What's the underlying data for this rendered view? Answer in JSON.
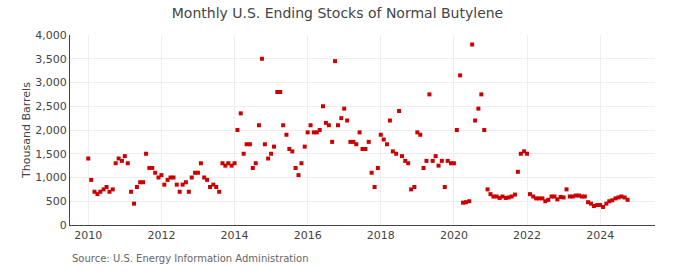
{
  "chart_data": {
    "type": "scatter",
    "title": "Monthly U.S. Ending Stocks of Normal Butylene",
    "ylabel": "Thousand Barrels",
    "annotations": [
      "Source: U.S. Energy Information Administration"
    ],
    "color": "#cc0000",
    "marker": "square",
    "grid": true,
    "xlim": [
      2009.5,
      2025.5
    ],
    "ylim": [
      0,
      4000
    ],
    "xticks": [
      2010,
      2012,
      2014,
      2016,
      2018,
      2020,
      2022,
      2024
    ],
    "yticks": [
      0,
      500,
      {
        "value": 1000,
        "label": "1,000"
      },
      {
        "value": 1500,
        "label": "1,500"
      },
      {
        "value": 2000,
        "label": "2,000"
      },
      {
        "value": 2500,
        "label": "2,500"
      },
      {
        "value": 3000,
        "label": "3,000"
      },
      {
        "value": 3500,
        "label": "3,500"
      },
      {
        "value": 4000,
        "label": "4,000"
      }
    ],
    "x": [
      2010.0,
      2010.08,
      2010.17,
      2010.25,
      2010.33,
      2010.42,
      2010.5,
      2010.58,
      2010.67,
      2010.75,
      2010.83,
      2010.92,
      2011.0,
      2011.08,
      2011.17,
      2011.25,
      2011.33,
      2011.42,
      2011.5,
      2011.58,
      2011.67,
      2011.75,
      2011.83,
      2011.92,
      2012.0,
      2012.08,
      2012.17,
      2012.25,
      2012.33,
      2012.42,
      2012.5,
      2012.58,
      2012.67,
      2012.75,
      2012.83,
      2012.92,
      2013.0,
      2013.08,
      2013.17,
      2013.25,
      2013.33,
      2013.42,
      2013.5,
      2013.58,
      2013.67,
      2013.75,
      2013.83,
      2013.92,
      2014.0,
      2014.08,
      2014.17,
      2014.25,
      2014.33,
      2014.42,
      2014.5,
      2014.58,
      2014.67,
      2014.75,
      2014.83,
      2014.92,
      2015.0,
      2015.08,
      2015.17,
      2015.25,
      2015.33,
      2015.42,
      2015.5,
      2015.58,
      2015.67,
      2015.75,
      2015.83,
      2015.92,
      2016.0,
      2016.08,
      2016.17,
      2016.25,
      2016.33,
      2016.42,
      2016.5,
      2016.58,
      2016.67,
      2016.75,
      2016.83,
      2016.92,
      2017.0,
      2017.08,
      2017.17,
      2017.25,
      2017.33,
      2017.42,
      2017.5,
      2017.58,
      2017.67,
      2017.75,
      2017.83,
      2017.92,
      2018.0,
      2018.08,
      2018.17,
      2018.25,
      2018.33,
      2018.42,
      2018.5,
      2018.58,
      2018.67,
      2018.75,
      2018.83,
      2018.92,
      2019.0,
      2019.08,
      2019.17,
      2019.25,
      2019.33,
      2019.42,
      2019.5,
      2019.58,
      2019.67,
      2019.75,
      2019.83,
      2019.92,
      2020.0,
      2020.08,
      2020.17,
      2020.25,
      2020.33,
      2020.42,
      2020.5,
      2020.58,
      2020.67,
      2020.75,
      2020.83,
      2020.92,
      2021.0,
      2021.08,
      2021.17,
      2021.25,
      2021.33,
      2021.42,
      2021.5,
      2021.58,
      2021.67,
      2021.75,
      2021.83,
      2021.92,
      2022.0,
      2022.08,
      2022.17,
      2022.25,
      2022.33,
      2022.42,
      2022.5,
      2022.58,
      2022.67,
      2022.75,
      2022.83,
      2022.92,
      2023.0,
      2023.08,
      2023.17,
      2023.25,
      2023.33,
      2023.42,
      2023.5,
      2023.58,
      2023.67,
      2023.75,
      2023.83,
      2023.92,
      2024.0,
      2024.08,
      2024.17,
      2024.25,
      2024.33,
      2024.42,
      2024.5,
      2024.58,
      2024.67,
      2024.75
    ],
    "values": [
      1400,
      950,
      700,
      650,
      700,
      750,
      800,
      700,
      750,
      1300,
      1400,
      1350,
      1450,
      1300,
      700,
      450,
      800,
      900,
      900,
      1500,
      1200,
      1200,
      1100,
      1000,
      1050,
      850,
      950,
      1000,
      1000,
      850,
      700,
      850,
      900,
      700,
      1000,
      1100,
      1100,
      1300,
      1000,
      950,
      800,
      850,
      800,
      700,
      1300,
      1250,
      1300,
      1250,
      1300,
      2000,
      2350,
      1500,
      1700,
      1700,
      1200,
      1300,
      2100,
      3500,
      1700,
      1400,
      1500,
      1650,
      2800,
      2800,
      2100,
      1900,
      1600,
      1550,
      1200,
      1050,
      1300,
      1650,
      1950,
      2100,
      1950,
      1950,
      2000,
      2500,
      2150,
      2100,
      1750,
      3450,
      2100,
      2250,
      2450,
      2200,
      1750,
      1750,
      1700,
      1950,
      1600,
      1600,
      1750,
      1100,
      800,
      1200,
      1900,
      1800,
      1700,
      2200,
      1550,
      1500,
      2400,
      1450,
      1350,
      1300,
      750,
      800,
      1950,
      1900,
      1200,
      1350,
      2750,
      1350,
      1450,
      1250,
      1350,
      800,
      1350,
      1300,
      1300,
      2000,
      3150,
      470,
      480,
      500,
      3800,
      2200,
      2450,
      2750,
      2000,
      750,
      650,
      600,
      600,
      570,
      600,
      570,
      580,
      600,
      640,
      1120,
      1500,
      1550,
      1500,
      650,
      600,
      560,
      560,
      560,
      500,
      530,
      600,
      600,
      540,
      590,
      580,
      750,
      600,
      600,
      620,
      620,
      600,
      600,
      480,
      450,
      400,
      420,
      420,
      380,
      450,
      500,
      520,
      560,
      580,
      600,
      580,
      530
    ]
  }
}
